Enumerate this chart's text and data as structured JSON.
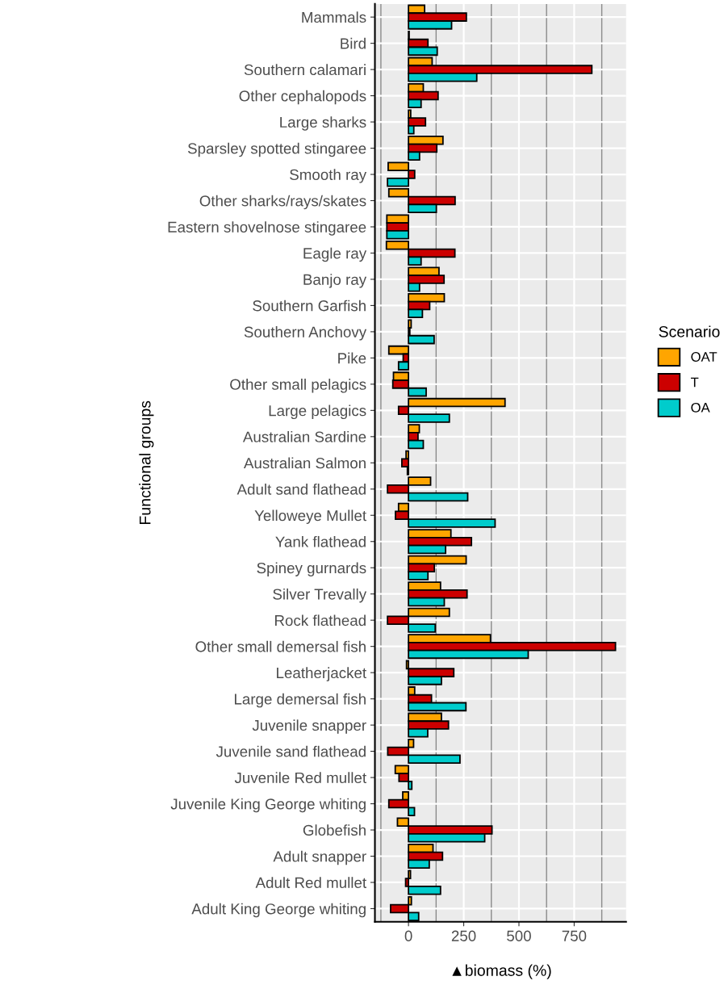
{
  "chart_data": {
    "type": "bar",
    "orientation": "horizontal",
    "xlabel": "▲biomass (%)",
    "ylabel": "Functional groups",
    "legend_title": "Scenario",
    "legend": "right",
    "grid": true,
    "categories": [
      "Mammals",
      "Bird",
      "Southern calamari",
      "Other cephalopods",
      "Large sharks",
      "Sparsley spotted stingaree",
      "Smooth ray",
      "Other sharks/rays/skates",
      "Eastern shovelnose stingaree",
      "Eagle ray",
      "Banjo ray",
      "Southern Garfish",
      "Southern Anchovy",
      "Pike",
      "Other small pelagics",
      "Large pelagics",
      "Australian Sardine",
      "Australian Salmon",
      "Adult sand flathead",
      "Yelloweye Mullet",
      "Yank flathead",
      "Spiney gurnards",
      "Silver Trevally",
      "Rock flathead",
      "Other small demersal fish",
      "Leatherjacket",
      "Large demersal fish",
      "Juvenile snapper",
      "Juvenile sand flathead",
      "Juvenile Red mullet",
      "Juvenile King George whiting",
      "Globefish",
      "Adult snapper",
      "Adult Red mullet",
      "Adult King George whiting"
    ],
    "xlim": [
      -152,
      985
    ],
    "xticks": [
      0,
      250,
      500,
      750
    ],
    "series": [
      {
        "name": "OAT",
        "color": "#ffa500",
        "values": [
          73,
          3,
          107,
          67,
          10,
          156,
          -92,
          -89,
          -98,
          -100,
          138,
          162,
          12,
          -89,
          -68,
          437,
          49,
          -11,
          100,
          -45,
          192,
          261,
          145,
          185,
          371,
          -9,
          28,
          149,
          23,
          -60,
          -26,
          -50,
          111,
          9,
          13
        ]
      },
      {
        "name": "T",
        "color": "#cc0000",
        "values": [
          262,
          88,
          830,
          134,
          77,
          128,
          28,
          211,
          -98,
          210,
          161,
          96,
          6,
          -24,
          -71,
          -45,
          43,
          -30,
          -95,
          -59,
          285,
          117,
          265,
          -95,
          937,
          205,
          104,
          181,
          -94,
          -43,
          -89,
          378,
          154,
          -13,
          -81
        ]
      },
      {
        "name": "OA",
        "color": "#00cccc",
        "values": [
          195,
          130,
          309,
          57,
          24,
          50,
          -95,
          126,
          -98,
          57,
          50,
          63,
          116,
          -45,
          80,
          185,
          67,
          -5,
          268,
          392,
          168,
          88,
          162,
          121,
          542,
          149,
          260,
          87,
          233,
          15,
          27,
          345,
          94,
          145,
          46
        ]
      }
    ]
  }
}
